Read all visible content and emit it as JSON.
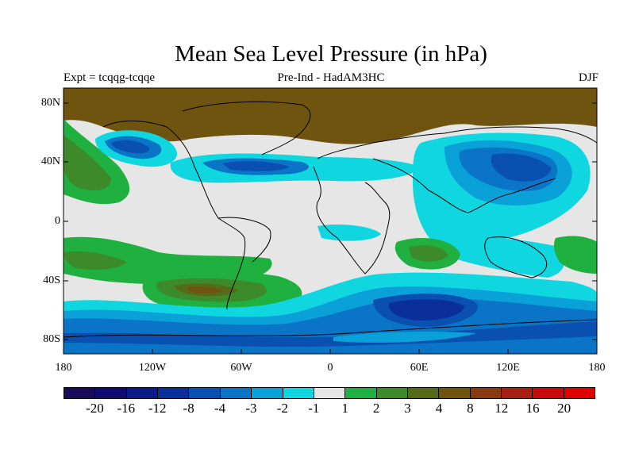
{
  "title": "Mean Sea Level Pressure (in hPa)",
  "subtitle_left": "Expt = tcqqg-tcqqe",
  "subtitle_center": "Pre-Ind - HadAM3HC",
  "subtitle_right": "DJF",
  "lat_labels": [
    "80N",
    "40N",
    "0",
    "40S",
    "80S"
  ],
  "lon_labels": [
    "180",
    "120W",
    "60W",
    "0",
    "60E",
    "120E",
    "180"
  ],
  "colorbar": {
    "labels": [
      "-20",
      "-16",
      "-12",
      "-8",
      "-4",
      "-3",
      "-2",
      "-1",
      "1",
      "2",
      "3",
      "4",
      "8",
      "12",
      "16",
      "20"
    ],
    "colors": [
      "#1a0a5a",
      "#100a70",
      "#0a1a86",
      "#0a2e9a",
      "#0a50b0",
      "#0a74c6",
      "#0aa0d8",
      "#10d6e0",
      "#e6e6e6",
      "#20b040",
      "#3c8a2a",
      "#556b18",
      "#6f5410",
      "#8a3a10",
      "#a81e10",
      "#c80a0a",
      "#e00000"
    ]
  },
  "map": {
    "land_color": "#000000",
    "background_color": "#e6e6e6"
  }
}
